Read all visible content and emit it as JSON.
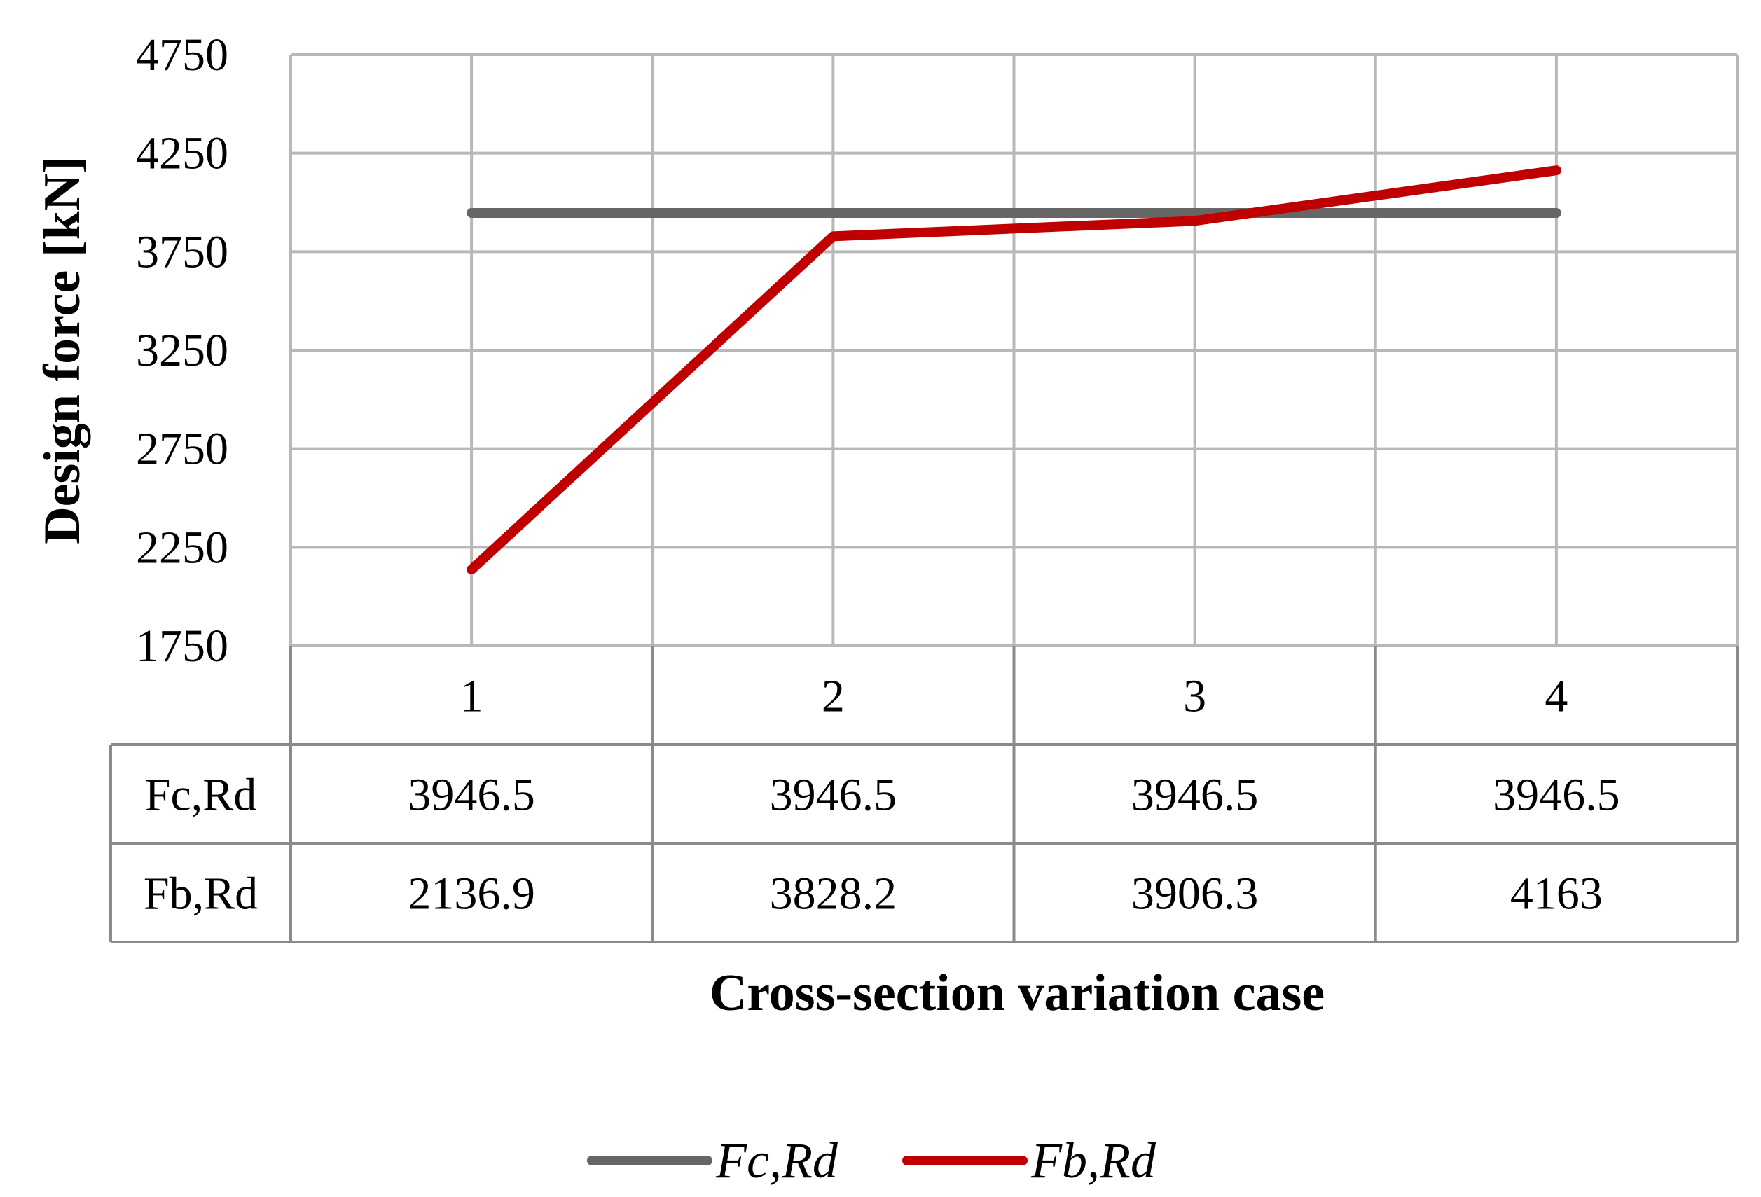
{
  "chart_data": {
    "type": "line",
    "title": "",
    "xlabel": "Cross-section variation case",
    "ylabel": "Design force [kN]",
    "categories": [
      "1",
      "2",
      "3",
      "4"
    ],
    "ylim": [
      1750,
      4750
    ],
    "yticks": [
      "4750",
      "4250",
      "3750",
      "3250",
      "2750",
      "2250",
      "1750"
    ],
    "ytick_values": [
      4750,
      4250,
      3750,
      3250,
      2750,
      2250,
      1750
    ],
    "grid": true,
    "legend_position": "bottom-center",
    "series": [
      {
        "name": "Fc,Rd",
        "color": "#666666",
        "values": [
          3946.5,
          3946.5,
          3946.5,
          3946.5
        ],
        "labels": [
          "3946.5",
          "3946.5",
          "3946.5",
          "3946.5"
        ]
      },
      {
        "name": "Fb,Rd",
        "color": "#c00000",
        "values": [
          2136.9,
          3828.2,
          3906.3,
          4163
        ],
        "labels": [
          "2136.9",
          "3828.2",
          "3906.3",
          "4163"
        ]
      }
    ]
  }
}
